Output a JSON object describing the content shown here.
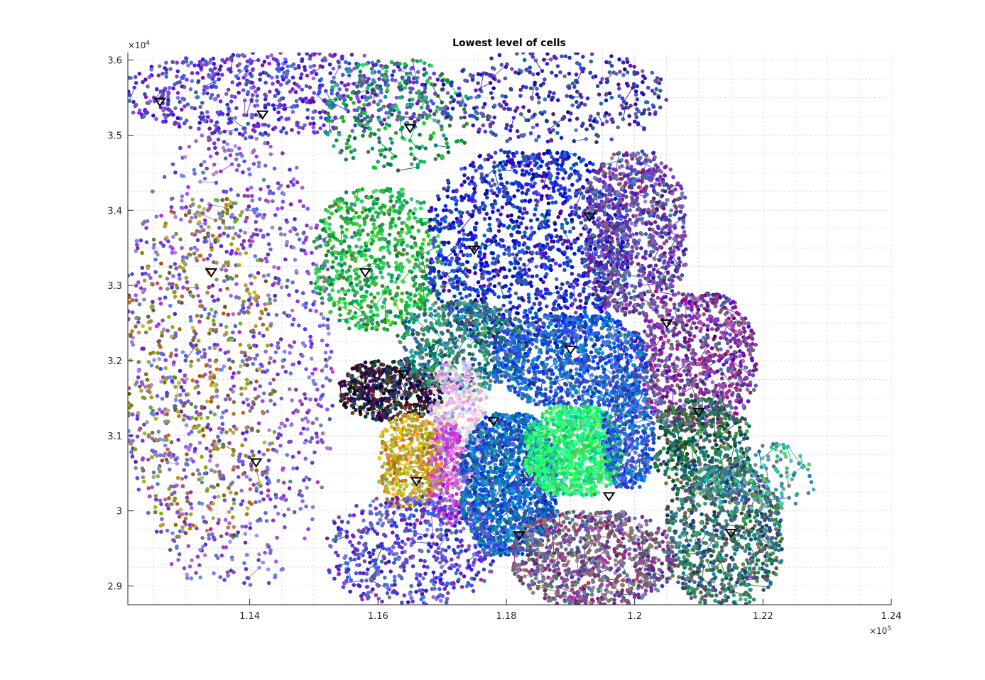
{
  "chart_data": {
    "type": "scatter",
    "title": "Lowest level of cells",
    "xlabel": "",
    "ylabel": "",
    "xlim": [
      112100,
      124000
    ],
    "ylim": [
      28750,
      36100
    ],
    "x_ticks": [
      114000,
      116000,
      118000,
      120000,
      122000,
      124000
    ],
    "x_tick_labels": [
      "1.14",
      "1.16",
      "1.18",
      "1.2",
      "1.22",
      "1.24"
    ],
    "y_ticks": [
      29000,
      30000,
      31000,
      32000,
      33000,
      34000,
      35000,
      36000
    ],
    "y_tick_labels": [
      "2.9",
      "3",
      "3.1",
      "3.2",
      "3.3",
      "3.4",
      "3.5",
      "3.6"
    ],
    "x_multiplier": {
      "base": "×10",
      "exponent": "5"
    },
    "y_multiplier": {
      "base": "×10",
      "exponent": "4"
    },
    "grid": true,
    "legend": "none",
    "marker_series": {
      "name": "",
      "marker": "downward-triangle",
      "color": "#000000",
      "x": [
        112600,
        114200,
        116500,
        113400,
        117500,
        119300,
        115800,
        120500,
        119000,
        116400,
        117800,
        121000,
        114100,
        116600,
        119600,
        118200,
        121500
      ],
      "y": [
        35450,
        35280,
        35100,
        33180,
        33480,
        33920,
        33180,
        32500,
        32150,
        31820,
        31200,
        31320,
        30650,
        30400,
        30200,
        29680,
        29710
      ]
    },
    "regions": [
      {
        "color": "#5a3fcf",
        "x": [
          112100,
          117000
        ],
        "y": [
          35000,
          36100
        ],
        "n": 700
      },
      {
        "color": "#1f9e5a",
        "x": [
          115200,
          117400
        ],
        "y": [
          34500,
          36000
        ],
        "n": 260
      },
      {
        "color": "#7e5bd6",
        "x": [
          112100,
          115300
        ],
        "y": [
          29000,
          35000
        ],
        "n": 1100
      },
      {
        "color": "#9a8a2e",
        "x": [
          112100,
          114400
        ],
        "y": [
          29600,
          34200
        ],
        "n": 420
      },
      {
        "color": "#2baf4f",
        "x": [
          115000,
          117000
        ],
        "y": [
          32400,
          34300
        ],
        "n": 700
      },
      {
        "color": "#2233c8",
        "x": [
          116800,
          119900
        ],
        "y": [
          32200,
          34800
        ],
        "n": 1500
      },
      {
        "color": "#6a4aa8",
        "x": [
          119200,
          120800
        ],
        "y": [
          32600,
          34800
        ],
        "n": 900
      },
      {
        "color": "#7a3f9e",
        "x": [
          120000,
          121900
        ],
        "y": [
          31100,
          32900
        ],
        "n": 900
      },
      {
        "color": "#2e2040",
        "x": [
          115400,
          117000
        ],
        "y": [
          31200,
          32000
        ],
        "n": 500
      },
      {
        "color": "#2f7f7f",
        "x": [
          116300,
          118300
        ],
        "y": [
          31600,
          32800
        ],
        "n": 600
      },
      {
        "color": "#1f5fcf",
        "x": [
          117800,
          120200
        ],
        "y": [
          31400,
          32600
        ],
        "n": 900
      },
      {
        "color": "#e0b8ea",
        "x": [
          116800,
          117700
        ],
        "y": [
          30300,
          32000
        ],
        "n": 420
      },
      {
        "color": "#c8a22a",
        "x": [
          116000,
          117000
        ],
        "y": [
          30000,
          31300
        ],
        "n": 420
      },
      {
        "color": "#c24fcf",
        "x": [
          116800,
          117400
        ],
        "y": [
          29800,
          31200
        ],
        "n": 220
      },
      {
        "color": "#1565c0",
        "x": [
          117300,
          118800
        ],
        "y": [
          29400,
          31300
        ],
        "n": 1500
      },
      {
        "color": "#2ff07a",
        "x": [
          118300,
          119800
        ],
        "y": [
          30200,
          31400
        ],
        "n": 1100
      },
      {
        "color": "#2a5fd0",
        "x": [
          119500,
          120300
        ],
        "y": [
          30300,
          31700
        ],
        "n": 450
      },
      {
        "color": "#2f6a55",
        "x": [
          120300,
          121800
        ],
        "y": [
          30200,
          31500
        ],
        "n": 500
      },
      {
        "color": "#3a7070",
        "x": [
          120500,
          122300
        ],
        "y": [
          28750,
          30600
        ],
        "n": 900
      },
      {
        "color": "#7a5a8a",
        "x": [
          118100,
          120600
        ],
        "y": [
          28750,
          30000
        ],
        "n": 900
      },
      {
        "color": "#5a4ad0",
        "x": [
          115200,
          117800
        ],
        "y": [
          28750,
          30200
        ],
        "n": 550
      },
      {
        "color": "#3f3faf",
        "x": [
          117000,
          120500
        ],
        "y": [
          34900,
          36100
        ],
        "n": 380
      },
      {
        "color": "#4aa0a0",
        "x": [
          121000,
          122800
        ],
        "y": [
          30000,
          30900
        ],
        "n": 160
      }
    ]
  }
}
